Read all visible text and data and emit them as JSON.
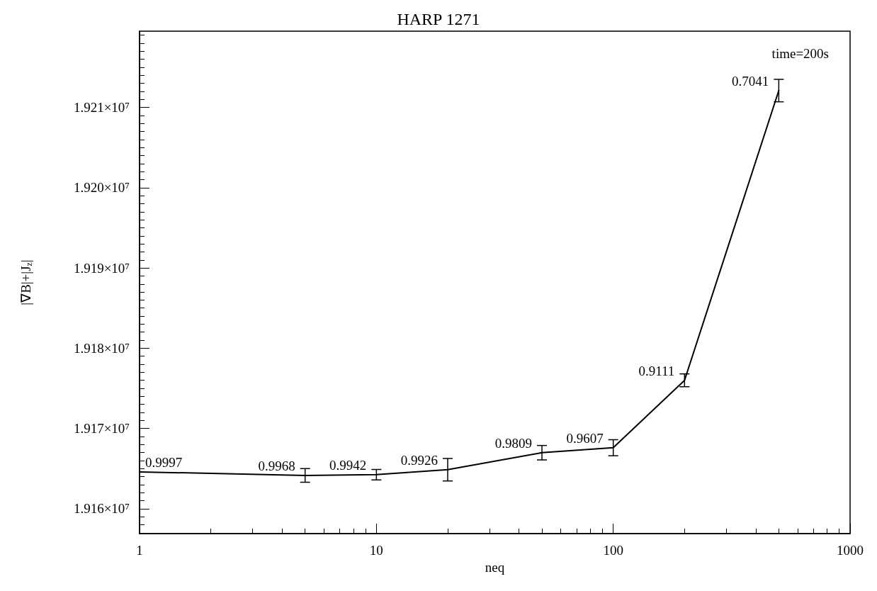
{
  "chart_data": {
    "type": "line",
    "title": "HARP 1271",
    "xlabel": "neq",
    "ylabel": "|∇B|+|J$_{z}$|",
    "x": [
      1,
      5,
      10,
      20,
      50,
      100,
      200,
      500
    ],
    "series": [
      {
        "color": "#000000",
        "values": [
          19164590,
          19164150,
          19164240,
          19164860,
          19166980,
          19167600,
          19176000,
          19212100
        ],
        "errors": [
          null,
          850,
          650,
          1400,
          900,
          1000,
          800,
          1400
        ]
      }
    ],
    "log": "x",
    "xlim": [
      1,
      1000
    ],
    "xticks": [
      1,
      10,
      100,
      1000
    ],
    "ylim": [
      19156900,
      19219500
    ],
    "yticks": [
      {
        "value": 19160000,
        "label": "1.916×10⁷"
      },
      {
        "value": 19170000,
        "label": "1.917×10⁷"
      },
      {
        "value": 19180000,
        "label": "1.918×10⁷"
      },
      {
        "value": 19190000,
        "label": "1.919×10⁷"
      },
      {
        "value": 19200000,
        "label": "1.920×10⁷"
      },
      {
        "value": 19210000,
        "label": "1.921×10⁷"
      }
    ],
    "annotations": [
      "time=200s",
      {
        "text": "0.9997",
        "x": 1,
        "y": 19164590
      },
      {
        "text": "0.9968",
        "x": 5,
        "y": 19164150
      },
      {
        "text": "0.9942",
        "x": 10,
        "y": 19164240
      },
      {
        "text": "0.9926",
        "x": 20,
        "y": 19164860
      },
      {
        "text": "0.9809",
        "x": 50,
        "y": 19166980
      },
      {
        "text": "0.9607",
        "x": 100,
        "y": 19167600
      },
      {
        "text": "0.9111",
        "x": 200,
        "y": 19176000
      },
      {
        "text": "0.7041",
        "x": 500,
        "y": 19212100
      }
    ],
    "marker": "none",
    "line_style": "solid"
  }
}
